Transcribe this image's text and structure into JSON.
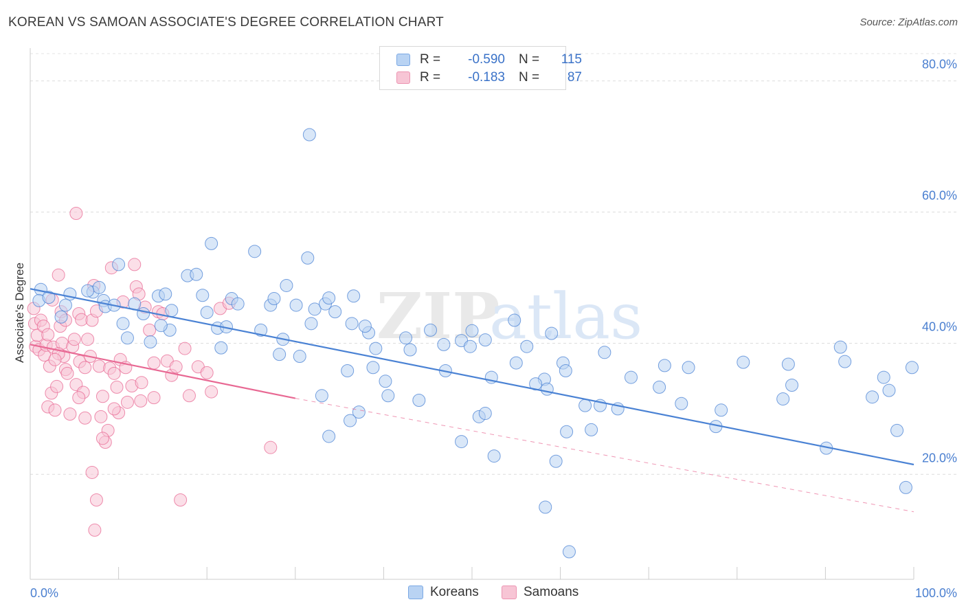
{
  "title": "KOREAN VS SAMOAN ASSOCIATE'S DEGREE CORRELATION CHART",
  "source": "Source: ZipAtlas.com",
  "watermark": {
    "zip": "ZIP",
    "atlas": "atlas"
  },
  "legend": {
    "r_label": "R =",
    "n_label": "N =",
    "rows": [
      {
        "name": "Koreans",
        "r": "-0.590",
        "n": "115",
        "fill": "#b9d3f3",
        "stroke": "#7aa8e4"
      },
      {
        "name": "Samoans",
        "r": "-0.183",
        "n": "87",
        "fill": "#f7c5d5",
        "stroke": "#ec93b1"
      }
    ]
  },
  "chart_data": {
    "type": "scatter",
    "ylabel": "Associate's Degree",
    "xlim": [
      0,
      100
    ],
    "ylim": [
      4,
      85
    ],
    "x_tick_labels": [
      {
        "value": 0,
        "label": "0.0%"
      },
      {
        "value": 100,
        "label": "100.0%"
      }
    ],
    "y_ticks": [
      {
        "value": 20,
        "label": "20.0%"
      },
      {
        "value": 40,
        "label": "40.0%"
      },
      {
        "value": 60,
        "label": "60.0%"
      },
      {
        "value": 80,
        "label": "80.0%"
      }
    ],
    "x_minor_ticks": [
      0,
      10,
      20,
      30,
      40,
      50,
      60,
      70,
      80,
      90,
      100
    ],
    "grid": true,
    "series": [
      {
        "name": "Koreans",
        "color": "#4a82d4",
        "fill": "#b9d3f3",
        "trend": {
          "x": [
            0,
            100
          ],
          "y": [
            48.3,
            21.5
          ],
          "solid": true
        },
        "points": [
          [
            1.2,
            48.2
          ],
          [
            1.0,
            46.5
          ],
          [
            2.1,
            47.0
          ],
          [
            4.5,
            47.5
          ],
          [
            4.0,
            45.8
          ],
          [
            3.5,
            44.0
          ],
          [
            7.1,
            47.8
          ],
          [
            7.8,
            48.5
          ],
          [
            6.5,
            48.0
          ],
          [
            8.3,
            46.5
          ],
          [
            8.5,
            45.6
          ],
          [
            9.5,
            45.8
          ],
          [
            10.0,
            52.0
          ],
          [
            11.8,
            46.0
          ],
          [
            10.5,
            43.0
          ],
          [
            11.0,
            40.8
          ],
          [
            12.8,
            44.5
          ],
          [
            13.6,
            40.2
          ],
          [
            14.5,
            47.2
          ],
          [
            15.3,
            47.5
          ],
          [
            16.0,
            45.0
          ],
          [
            15.8,
            42.0
          ],
          [
            14.8,
            42.7
          ],
          [
            17.8,
            50.3
          ],
          [
            18.8,
            50.5
          ],
          [
            19.5,
            47.3
          ],
          [
            20.0,
            44.7
          ],
          [
            20.5,
            55.2
          ],
          [
            21.2,
            42.3
          ],
          [
            22.2,
            42.5
          ],
          [
            22.8,
            46.8
          ],
          [
            21.6,
            39.3
          ],
          [
            23.5,
            46.0
          ],
          [
            25.4,
            54.0
          ],
          [
            26.1,
            42.0
          ],
          [
            27.2,
            45.8
          ],
          [
            27.6,
            46.8
          ],
          [
            28.2,
            38.3
          ],
          [
            28.6,
            40.6
          ],
          [
            29.0,
            48.8
          ],
          [
            30.1,
            45.8
          ],
          [
            31.4,
            53.0
          ],
          [
            30.5,
            38.0
          ],
          [
            31.8,
            43.0
          ],
          [
            32.2,
            45.2
          ],
          [
            31.6,
            71.8
          ],
          [
            33.4,
            46.0
          ],
          [
            33.8,
            46.9
          ],
          [
            34.5,
            44.8
          ],
          [
            36.4,
            43.0
          ],
          [
            36.6,
            47.2
          ],
          [
            38.3,
            41.6
          ],
          [
            37.9,
            42.6
          ],
          [
            39.1,
            39.2
          ],
          [
            38.8,
            36.3
          ],
          [
            33.0,
            32.0
          ],
          [
            35.9,
            35.8
          ],
          [
            37.2,
            29.5
          ],
          [
            33.8,
            25.8
          ],
          [
            36.2,
            28.2
          ],
          [
            40.2,
            34.2
          ],
          [
            40.5,
            32.0
          ],
          [
            42.5,
            40.8
          ],
          [
            43.0,
            39.0
          ],
          [
            44.0,
            31.3
          ],
          [
            45.3,
            42.0
          ],
          [
            46.8,
            39.8
          ],
          [
            47.0,
            35.8
          ],
          [
            48.8,
            40.4
          ],
          [
            51.5,
            40.5
          ],
          [
            50.8,
            28.8
          ],
          [
            48.8,
            25.0
          ],
          [
            49.8,
            39.5
          ],
          [
            50.0,
            41.9
          ],
          [
            52.2,
            34.8
          ],
          [
            51.5,
            29.3
          ],
          [
            52.5,
            22.8
          ],
          [
            54.8,
            43.5
          ],
          [
            55.0,
            37.0
          ],
          [
            56.2,
            39.5
          ],
          [
            58.2,
            34.5
          ],
          [
            57.2,
            33.8
          ],
          [
            59.0,
            41.5
          ],
          [
            58.5,
            33.0
          ],
          [
            58.3,
            15.0
          ],
          [
            59.5,
            22.0
          ],
          [
            60.3,
            37.0
          ],
          [
            60.6,
            35.8
          ],
          [
            60.7,
            26.5
          ],
          [
            61.0,
            8.2
          ],
          [
            64.5,
            30.5
          ],
          [
            63.5,
            26.8
          ],
          [
            62.8,
            30.5
          ],
          [
            65.0,
            38.6
          ],
          [
            66.5,
            30.0
          ],
          [
            68.0,
            34.8
          ],
          [
            71.2,
            33.3
          ],
          [
            73.7,
            30.8
          ],
          [
            74.5,
            36.3
          ],
          [
            71.8,
            36.6
          ],
          [
            78.2,
            29.8
          ],
          [
            77.6,
            27.3
          ],
          [
            80.7,
            37.1
          ],
          [
            85.2,
            31.5
          ],
          [
            85.8,
            36.8
          ],
          [
            86.2,
            33.6
          ],
          [
            90.1,
            24.0
          ],
          [
            91.7,
            39.4
          ],
          [
            92.2,
            37.2
          ],
          [
            95.3,
            31.8
          ],
          [
            97.2,
            32.8
          ],
          [
            96.6,
            34.8
          ],
          [
            98.1,
            26.7
          ],
          [
            99.1,
            18.0
          ],
          [
            99.8,
            36.3
          ]
        ]
      },
      {
        "name": "Samoans",
        "color": "#e86893",
        "fill": "#f7c5d5",
        "trend": {
          "x": [
            0,
            30
          ],
          "y": [
            39.8,
            31.6
          ],
          "solid": true,
          "dash_to": [
            100,
            14.3
          ]
        },
        "points": [
          [
            0.4,
            45.3
          ],
          [
            0.5,
            43.0
          ],
          [
            0.6,
            39.5
          ],
          [
            0.8,
            41.2
          ],
          [
            1.0,
            39.0
          ],
          [
            1.2,
            43.5
          ],
          [
            1.5,
            42.6
          ],
          [
            1.6,
            38.2
          ],
          [
            1.8,
            39.7
          ],
          [
            2.0,
            41.3
          ],
          [
            2.2,
            36.5
          ],
          [
            2.0,
            30.3
          ],
          [
            2.4,
            32.4
          ],
          [
            2.5,
            46.6
          ],
          [
            2.6,
            39.4
          ],
          [
            2.8,
            29.8
          ],
          [
            3.0,
            33.4
          ],
          [
            3.2,
            50.4
          ],
          [
            3.4,
            42.6
          ],
          [
            3.5,
            44.8
          ],
          [
            3.6,
            40.0
          ],
          [
            3.8,
            38.0
          ],
          [
            4.0,
            36.0
          ],
          [
            4.2,
            35.4
          ],
          [
            4.5,
            29.2
          ],
          [
            4.8,
            39.5
          ],
          [
            5.0,
            40.6
          ],
          [
            5.2,
            33.7
          ],
          [
            5.5,
            44.5
          ],
          [
            5.6,
            37.2
          ],
          [
            5.8,
            43.6
          ],
          [
            6.0,
            32.5
          ],
          [
            6.2,
            36.3
          ],
          [
            6.5,
            40.6
          ],
          [
            6.8,
            38.0
          ],
          [
            7.0,
            43.5
          ],
          [
            7.2,
            48.8
          ],
          [
            7.5,
            44.9
          ],
          [
            7.8,
            36.5
          ],
          [
            8.0,
            28.8
          ],
          [
            8.2,
            31.9
          ],
          [
            8.5,
            24.9
          ],
          [
            8.8,
            26.7
          ],
          [
            9.0,
            36.2
          ],
          [
            9.2,
            51.5
          ],
          [
            9.5,
            35.4
          ],
          [
            9.8,
            33.3
          ],
          [
            10.0,
            29.4
          ],
          [
            10.2,
            37.5
          ],
          [
            10.5,
            46.3
          ],
          [
            10.8,
            36.3
          ],
          [
            11.0,
            31.0
          ],
          [
            11.5,
            33.5
          ],
          [
            11.8,
            52.0
          ],
          [
            12.0,
            48.6
          ],
          [
            12.3,
            47.5
          ],
          [
            12.6,
            34.0
          ],
          [
            13.0,
            45.5
          ],
          [
            13.5,
            42.0
          ],
          [
            14.0,
            37.0
          ],
          [
            14.5,
            44.8
          ],
          [
            15.0,
            44.5
          ],
          [
            15.5,
            37.3
          ],
          [
            16.0,
            35.1
          ],
          [
            16.5,
            36.4
          ],
          [
            17.0,
            16.1
          ],
          [
            17.5,
            39.2
          ],
          [
            18.0,
            32.0
          ],
          [
            19.0,
            36.4
          ],
          [
            20.0,
            35.5
          ],
          [
            20.5,
            32.6
          ],
          [
            21.5,
            45.3
          ],
          [
            22.5,
            46.1
          ],
          [
            27.2,
            24.1
          ],
          [
            5.2,
            59.8
          ],
          [
            7.0,
            20.3
          ],
          [
            7.3,
            11.5
          ],
          [
            7.5,
            16.1
          ],
          [
            8.2,
            25.5
          ],
          [
            4.0,
            43.5
          ],
          [
            3.2,
            38.4
          ],
          [
            2.8,
            37.5
          ],
          [
            5.5,
            31.7
          ],
          [
            6.2,
            28.6
          ],
          [
            12.5,
            31.2
          ],
          [
            14.0,
            31.7
          ],
          [
            9.5,
            30.0
          ]
        ]
      }
    ]
  }
}
